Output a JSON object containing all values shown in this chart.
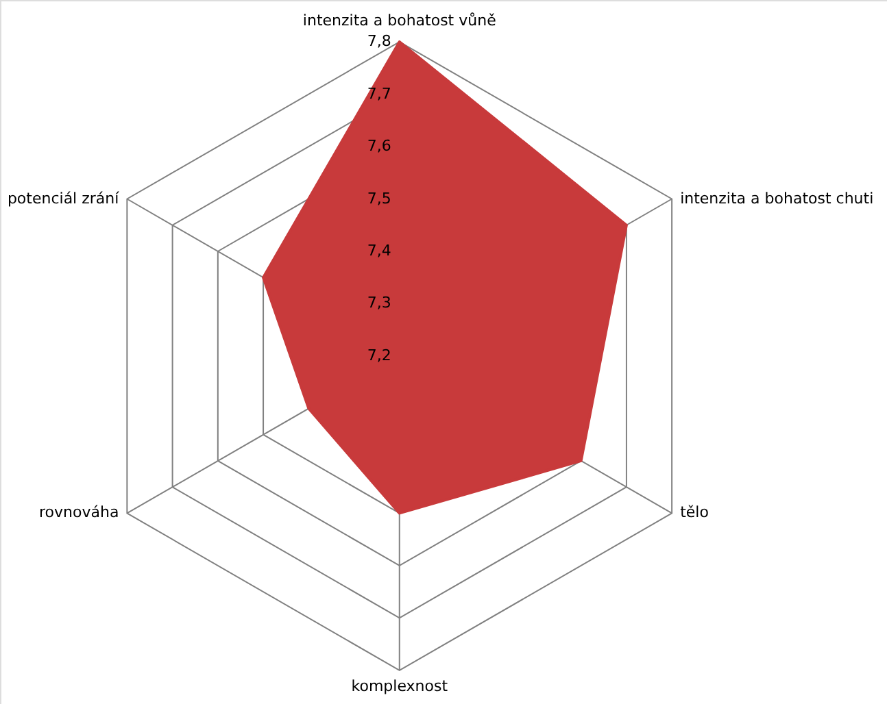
{
  "chart_data": {
    "type": "radar",
    "categories": [
      "intenzita a bohatost  vůně",
      "intenzita a bohatost  chuti",
      "tělo",
      "komplexnost",
      "rovnováha",
      "potenciál zrání"
    ],
    "series": [
      {
        "color": "#c83a3b",
        "values": [
          7.8,
          7.7,
          7.6,
          7.5,
          7.4,
          7.5
        ]
      }
    ],
    "ylim": [
      7.2,
      7.8
    ],
    "yticks": [
      {
        "value": 7.2,
        "label": "7,2"
      },
      {
        "value": 7.3,
        "label": "7,3"
      },
      {
        "value": 7.4,
        "label": "7,4"
      },
      {
        "value": 7.5,
        "label": "7,5"
      },
      {
        "value": 7.6,
        "label": "7,6"
      },
      {
        "value": 7.7,
        "label": "7,7"
      },
      {
        "value": 7.8,
        "label": "7,8"
      }
    ],
    "grid": true
  }
}
